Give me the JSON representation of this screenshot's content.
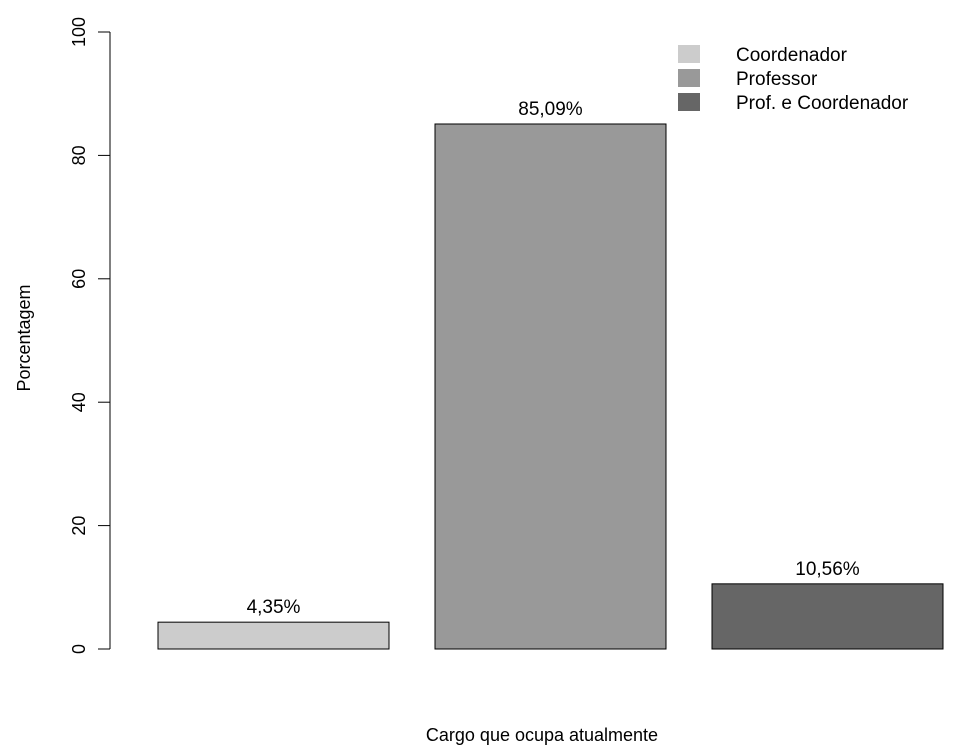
{
  "chart_data": {
    "type": "bar",
    "categories": [
      "Coordenador",
      "Professor",
      "Prof. e Coordenador"
    ],
    "values": [
      4.35,
      85.09,
      10.56
    ],
    "value_labels": [
      "4,35%",
      "85,09%",
      "10,56%"
    ],
    "colors": [
      "#cccccc",
      "#999999",
      "#666666"
    ],
    "title": "",
    "xlabel": "Cargo que ocupa atualmente",
    "ylabel": "Porcentagem",
    "ylim": [
      0,
      100
    ],
    "yticks": [
      0,
      20,
      40,
      60,
      80,
      100
    ],
    "grid": false,
    "legend": {
      "position": "top-right",
      "entries": [
        "Coordenador",
        "Professor",
        "Prof. e Coordenador"
      ]
    }
  }
}
